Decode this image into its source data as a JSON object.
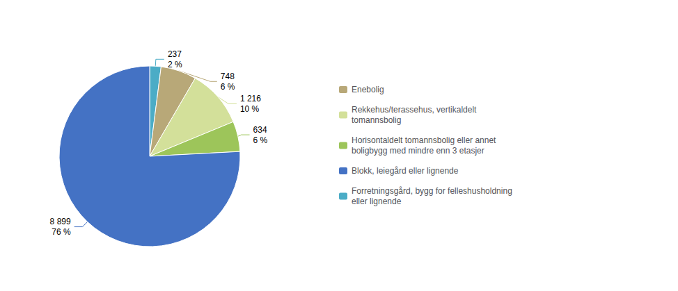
{
  "chart_data": {
    "type": "pie",
    "categories": [
      "Forretningsgård, bygg for felleshusholdning\neller lignende",
      "Enebolig",
      "Rekkehus/terassehus, vertikaldelt\ntomannsbolig",
      "Horisontaldelt tomannsbolig eller annet\nboligbygg med mindre enn 3 etasjer",
      "Blokk, leiegård eller lignende"
    ],
    "values": [
      237,
      748,
      1216,
      634,
      8899
    ],
    "value_labels": [
      "237",
      "748",
      "1 216",
      "634",
      "8 899"
    ],
    "shares": [
      2,
      6,
      10,
      6,
      76
    ],
    "share_labels": [
      "2 %",
      "6 %",
      "10 %",
      "6 %",
      "76 %"
    ],
    "colors": [
      "#4bacc6",
      "#b8a878",
      "#d3e09a",
      "#9dc55a",
      "#4472c4"
    ],
    "data_labels": true,
    "legend": "right",
    "legend_order": [
      "Enebolig",
      "Rekkehus/terassehus, vertikaldelt\ntomannsbolig",
      "Horisontaldelt tomannsbolig eller annet\nboligbygg med mindre enn 3 etasjer",
      "Blokk, leiegård eller lignende",
      "Forretningsgård, bygg for felleshusholdning\neller lignende"
    ]
  }
}
